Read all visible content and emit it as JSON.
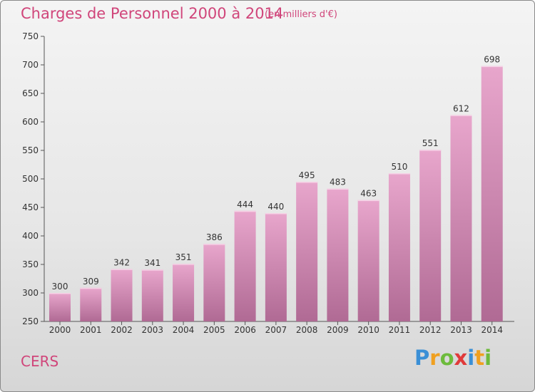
{
  "chart_data": {
    "type": "bar",
    "title": "Charges de Personnel 2000 à 2014",
    "subtitle": "(en milliers d'€)",
    "xlabel": "",
    "ylabel": "",
    "categories": [
      "2000",
      "2001",
      "2002",
      "2003",
      "2004",
      "2005",
      "2006",
      "2007",
      "2008",
      "2009",
      "2010",
      "2011",
      "2012",
      "2013",
      "2014"
    ],
    "values": [
      300,
      309,
      342,
      341,
      351,
      386,
      444,
      440,
      495,
      483,
      463,
      510,
      551,
      612,
      698
    ],
    "ylim": [
      250,
      750
    ],
    "yticks": [
      250,
      300,
      350,
      400,
      450,
      500,
      550,
      600,
      650,
      700,
      750
    ],
    "grid": false,
    "legend": "none",
    "colors": {
      "bar_top": "#e8a6cc",
      "bar_bottom": "#b06a94",
      "accent": "#d0457a"
    }
  },
  "place_name": "CERS",
  "logo": {
    "letters": [
      "P",
      "r",
      "o",
      "x",
      "i",
      "t",
      "i"
    ],
    "colors": [
      "#3a8fd6",
      "#f0a020",
      "#6dbb3c",
      "#e03a3a",
      "#3a8fd6",
      "#f0a020",
      "#6dbb3c"
    ]
  }
}
